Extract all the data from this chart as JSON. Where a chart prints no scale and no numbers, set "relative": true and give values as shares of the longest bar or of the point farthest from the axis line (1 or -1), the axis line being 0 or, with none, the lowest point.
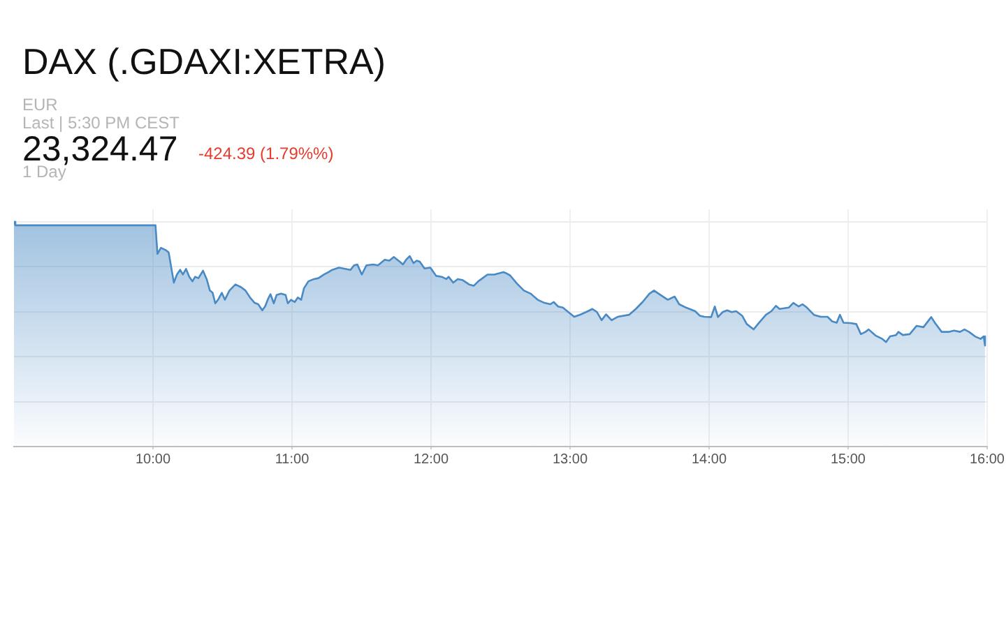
{
  "chart_data": {
    "type": "area",
    "title": "DAX (.GDAXI:XETRA)",
    "annotations": [
      "EUR",
      "Last | 5:30 PM CEST",
      "23,324.47",
      "-424.39 (1.79%%)",
      "1 Day"
    ],
    "relative": true,
    "color": "#4a8ac4",
    "marker": "none",
    "grid": true,
    "xlim": [
      9,
      16
    ],
    "xticks": [
      {
        "value": 10,
        "label": "10:00"
      },
      {
        "value": 11,
        "label": "11:00"
      },
      {
        "value": 12,
        "label": "12:00"
      },
      {
        "value": 13,
        "label": "13:00"
      },
      {
        "value": 14,
        "label": "14:00"
      },
      {
        "value": 15,
        "label": "15:00"
      },
      {
        "value": 16,
        "label": "16:00"
      }
    ],
    "x": [
      9.0,
      9.01,
      10.018,
      10.032,
      10.057,
      10.091,
      10.113,
      10.15,
      10.172,
      10.195,
      10.215,
      10.238,
      10.261,
      10.284,
      10.303,
      10.327,
      10.36,
      10.386,
      10.409,
      10.429,
      10.448,
      10.468,
      10.495,
      10.517,
      10.55,
      10.593,
      10.633,
      10.665,
      10.698,
      10.731,
      10.757,
      10.786,
      10.806,
      10.83,
      10.845,
      10.869,
      10.889,
      10.921,
      10.954,
      10.97,
      10.993,
      11.02,
      11.042,
      11.066,
      11.086,
      11.118,
      11.158,
      11.19,
      11.23,
      11.263,
      11.289,
      11.338,
      11.387,
      11.421,
      11.446,
      11.47,
      11.502,
      11.535,
      11.584,
      11.618,
      11.667,
      11.7,
      11.732,
      11.775,
      11.798,
      11.821,
      11.847,
      11.874,
      11.897,
      11.919,
      11.953,
      11.995,
      12.037,
      12.077,
      12.11,
      12.126,
      12.16,
      12.192,
      12.225,
      12.274,
      12.307,
      12.34,
      12.406,
      12.455,
      12.52,
      12.537,
      12.569,
      12.619,
      12.668,
      12.717,
      12.767,
      12.816,
      12.859,
      12.882,
      12.914,
      12.948,
      12.98,
      13.03,
      13.079,
      13.128,
      13.161,
      13.194,
      13.227,
      13.259,
      13.299,
      13.342,
      13.424,
      13.473,
      13.522,
      13.571,
      13.604,
      13.637,
      13.703,
      13.752,
      13.785,
      13.834,
      13.9,
      13.933,
      13.966,
      14.015,
      14.041,
      14.064,
      14.097,
      14.13,
      14.163,
      14.195,
      14.238,
      14.271,
      14.32,
      14.36,
      14.409,
      14.448,
      14.481,
      14.507,
      14.573,
      14.606,
      14.645,
      14.672,
      14.704,
      14.754,
      14.803,
      14.852,
      14.885,
      14.918,
      14.941,
      14.967,
      15.017,
      15.059,
      15.092,
      15.125,
      15.148,
      15.197,
      15.246,
      15.273,
      15.302,
      15.345,
      15.362,
      15.394,
      15.443,
      15.493,
      15.542,
      15.598,
      15.624,
      15.673,
      15.722,
      15.762,
      15.805,
      15.837,
      15.87,
      15.913,
      15.953,
      15.975,
      15.985
    ],
    "values": [
      1.0,
      0.984,
      0.984,
      0.857,
      0.884,
      0.874,
      0.863,
      0.729,
      0.765,
      0.786,
      0.765,
      0.79,
      0.755,
      0.735,
      0.755,
      0.749,
      0.782,
      0.745,
      0.694,
      0.684,
      0.637,
      0.653,
      0.684,
      0.653,
      0.694,
      0.721,
      0.709,
      0.694,
      0.663,
      0.639,
      0.633,
      0.606,
      0.623,
      0.66,
      0.678,
      0.637,
      0.674,
      0.68,
      0.674,
      0.637,
      0.653,
      0.643,
      0.663,
      0.653,
      0.704,
      0.735,
      0.745,
      0.749,
      0.765,
      0.776,
      0.786,
      0.796,
      0.79,
      0.786,
      0.806,
      0.81,
      0.765,
      0.806,
      0.81,
      0.806,
      0.831,
      0.827,
      0.843,
      0.822,
      0.81,
      0.831,
      0.847,
      0.816,
      0.827,
      0.822,
      0.792,
      0.796,
      0.759,
      0.755,
      0.745,
      0.755,
      0.729,
      0.745,
      0.741,
      0.721,
      0.715,
      0.735,
      0.765,
      0.765,
      0.776,
      0.772,
      0.761,
      0.724,
      0.694,
      0.68,
      0.653,
      0.639,
      0.633,
      0.643,
      0.623,
      0.618,
      0.602,
      0.577,
      0.588,
      0.602,
      0.612,
      0.598,
      0.562,
      0.588,
      0.562,
      0.577,
      0.586,
      0.612,
      0.643,
      0.68,
      0.694,
      0.68,
      0.653,
      0.667,
      0.633,
      0.618,
      0.602,
      0.582,
      0.577,
      0.576,
      0.623,
      0.576,
      0.598,
      0.606,
      0.598,
      0.602,
      0.582,
      0.545,
      0.521,
      0.551,
      0.586,
      0.602,
      0.626,
      0.612,
      0.618,
      0.639,
      0.623,
      0.633,
      0.618,
      0.586,
      0.577,
      0.577,
      0.557,
      0.551,
      0.586,
      0.551,
      0.549,
      0.545,
      0.5,
      0.51,
      0.521,
      0.494,
      0.479,
      0.465,
      0.49,
      0.496,
      0.51,
      0.496,
      0.5,
      0.537,
      0.531,
      0.576,
      0.551,
      0.51,
      0.51,
      0.516,
      0.51,
      0.521,
      0.51,
      0.49,
      0.479,
      0.49,
      0.449
    ]
  }
}
